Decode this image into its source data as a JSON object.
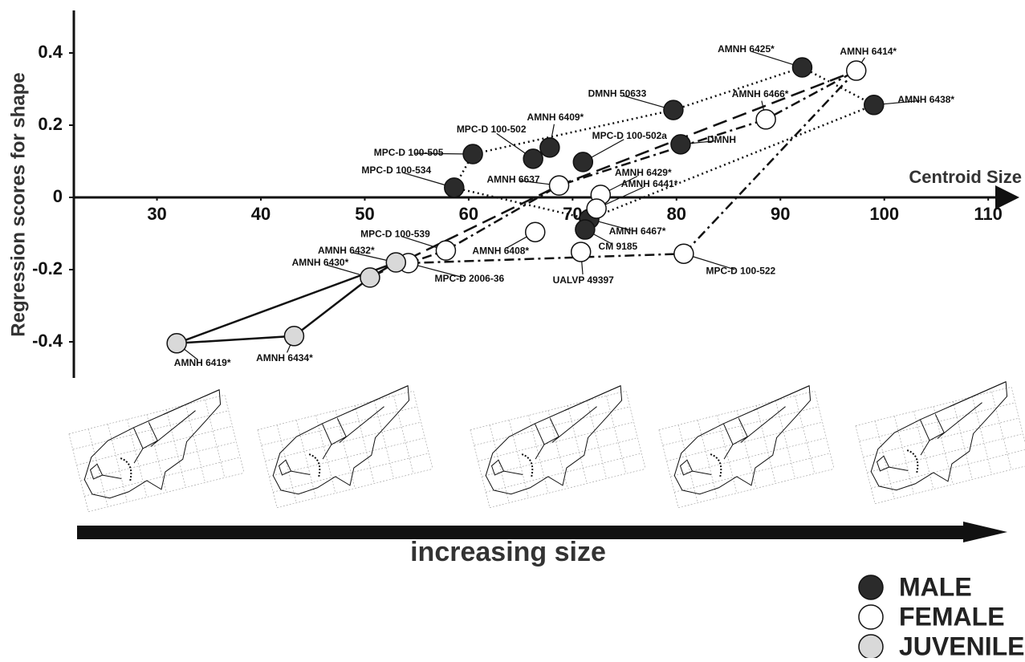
{
  "chart_data": {
    "type": "scatter",
    "y_label": "Regression scores for shape",
    "x_label": "Centroid Size",
    "annotation": "increasing size",
    "xlim": [
      22,
      113
    ],
    "ylim": [
      -0.5,
      0.5
    ],
    "xticks": [
      30,
      40,
      50,
      60,
      70,
      80,
      90,
      100,
      110
    ],
    "yticks": [
      -0.4,
      -0.2,
      0,
      0.2,
      0.4
    ],
    "series": [
      {
        "name": "MALE",
        "color": "#2b2b2b",
        "labels": [
          "AMNH 6425*",
          "AMNH 6438*",
          "DMNH 50633",
          "DMNH",
          "MPC-D 100-502a",
          "AMNH 6409*",
          "MPC-D 100-502",
          "MPC-D 100-505",
          "MPC-D 100-534",
          "AMNH 6467*",
          "CM 9185"
        ],
        "x": [
          92.1,
          99.0,
          79.7,
          80.4,
          71.0,
          67.8,
          66.2,
          60.4,
          58.6,
          71.6,
          71.2
        ],
        "values": [
          0.36,
          0.256,
          0.242,
          0.147,
          0.098,
          0.138,
          0.107,
          0.12,
          0.027,
          -0.06,
          -0.089
        ]
      },
      {
        "name": "FEMALE",
        "color": "#ffffff",
        "labels": [
          "AMNH 6414*",
          "AMNH 6466*",
          "AMNH 6637",
          "AMNH 6429*",
          "AMNH 6441*",
          "AMNH 6408*",
          "MPC-D 100-539",
          "MPC-D 2006-36",
          "UALVP 49397",
          "MPC-D 100-522"
        ],
        "x": [
          97.3,
          88.6,
          68.7,
          72.7,
          72.3,
          66.4,
          57.8,
          54.2,
          70.8,
          80.7
        ],
        "values": [
          0.351,
          0.216,
          0.033,
          0.007,
          -0.031,
          -0.096,
          -0.147,
          -0.182,
          -0.151,
          -0.156
        ]
      },
      {
        "name": "JUVENILE",
        "color": "#d9d9d9",
        "labels": [
          "AMNH 6432*",
          "AMNH 6430*",
          "AMNH 6434*",
          "AMNH 6419*"
        ],
        "x": [
          53.0,
          50.5,
          43.2,
          31.9
        ],
        "values": [
          -0.18,
          -0.222,
          -0.384,
          -0.404
        ]
      }
    ]
  }
}
